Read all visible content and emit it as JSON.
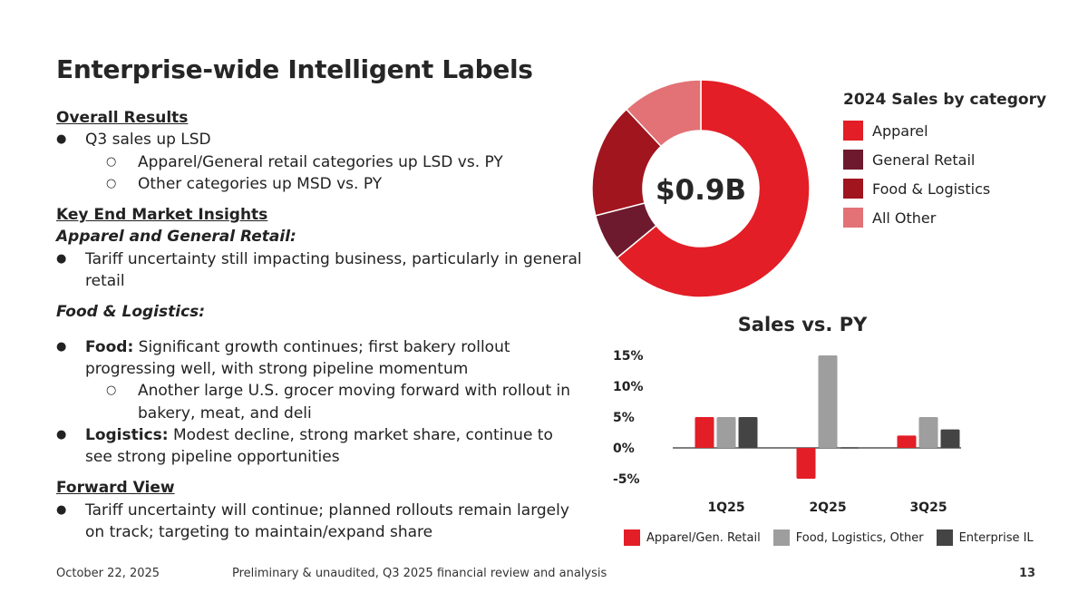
{
  "title": "Enterprise-wide Intelligent Labels",
  "overall": {
    "heading": "Overall Results",
    "b1": "Q3 sales up LSD",
    "s1": "Apparel/General retail categories up LSD vs. PY",
    "s2": "Other categories up MSD vs. PY"
  },
  "insights": {
    "heading": "Key End Market Insights",
    "apparel_sub": "Apparel and General Retail:",
    "apparel_b1": "Tariff uncertainty still impacting business, particularly in general retail",
    "food_sub": "Food & Logistics:",
    "food_label": "Food:",
    "food_text": " Significant growth continues; first bakery rollout progressing well, with strong pipeline momentum",
    "food_s1": "Another large U.S. grocer moving forward with rollout in bakery, meat, and deli",
    "log_label": "Logistics:",
    "log_text": " Modest decline, strong market share, continue to see strong pipeline opportunities"
  },
  "forward": {
    "heading": "Forward View",
    "b1": "Tariff uncertainty will continue; planned rollouts remain largely on track; targeting to maintain/expand share"
  },
  "footer": {
    "date": "October 22, 2025",
    "note": "Preliminary & unaudited, Q3 2025 financial review and analysis",
    "page": "13"
  },
  "chart_data": [
    {
      "type": "pie",
      "title": "2024 Sales by category",
      "center_label": "$0.9B",
      "categories": [
        "Apparel",
        "General Retail",
        "Food & Logistics",
        "All Other"
      ],
      "values": [
        64,
        7,
        17,
        12
      ],
      "colors": [
        "#E31E26",
        "#6E1A2E",
        "#A0151E",
        "#E27275"
      ]
    },
    {
      "type": "bar",
      "title": "Sales vs. PY",
      "categories": [
        "1Q25",
        "2Q25",
        "3Q25"
      ],
      "series": [
        {
          "name": "Apparel/Gen. Retail",
          "color": "#E31E26",
          "values": [
            5,
            -5,
            2
          ]
        },
        {
          "name": "Food, Logistics, Other",
          "color": "#9E9E9E",
          "values": [
            5,
            15,
            5
          ]
        },
        {
          "name": "Enterprise IL",
          "color": "#444444",
          "values": [
            5,
            0,
            3
          ]
        }
      ],
      "ylim": [
        -5,
        15
      ],
      "yticks": [
        "15%",
        "10%",
        "5%",
        "0%",
        "-5%"
      ],
      "ytick_values": [
        15,
        10,
        5,
        0,
        -5
      ]
    }
  ]
}
